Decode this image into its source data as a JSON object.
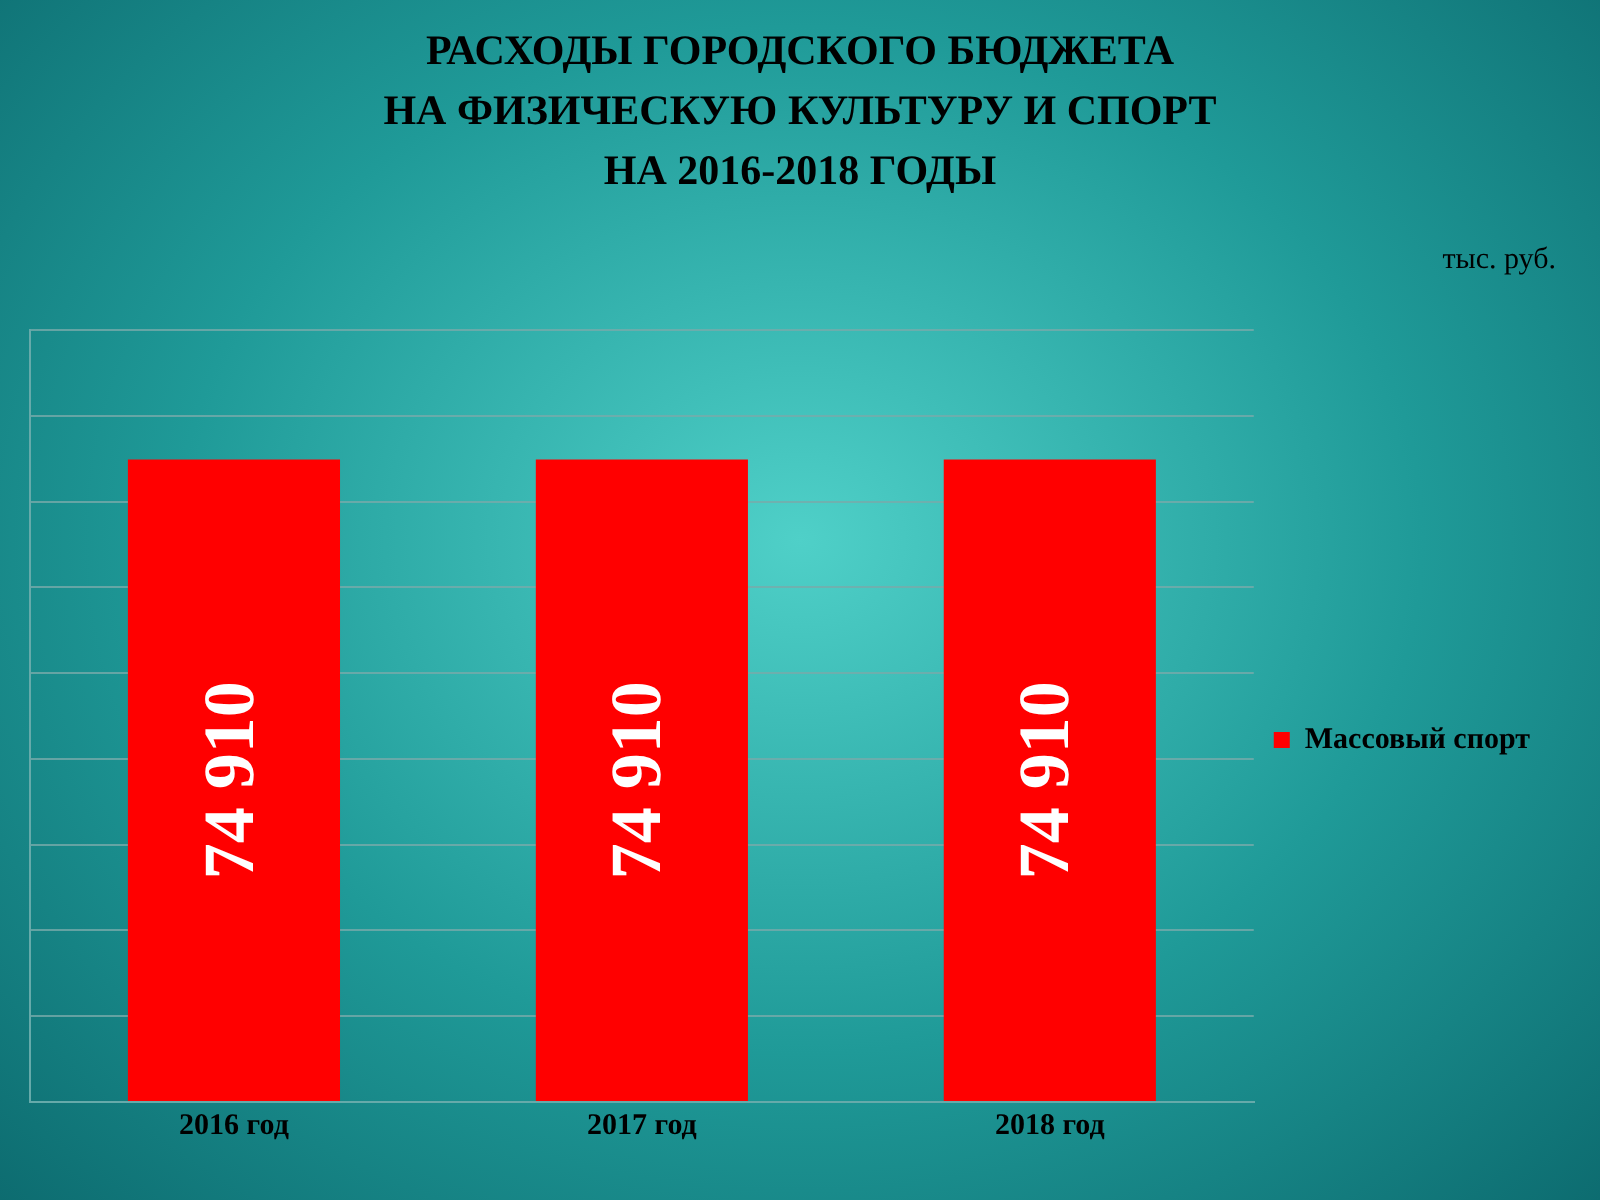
{
  "chart_data": {
    "type": "bar",
    "title": "РАСХОДЫ ГОРОДСКОГО БЮДЖЕТА\nНА ФИЗИЧЕСКУЮ КУЛЬТУРУ И СПОРТ\nНА 2016-2018 ГОДЫ",
    "annotations": [
      "тыс. руб."
    ],
    "categories": [
      "2016 год",
      "2017 год",
      "2018 год"
    ],
    "series": [
      {
        "name": "Массовый спорт",
        "color": "#ff0000",
        "values": [
          74910,
          74910,
          74910
        ],
        "value_labels": [
          "74 910",
          "74 910",
          "74 910"
        ]
      }
    ],
    "ylim": [
      0,
      90000
    ],
    "yticks": [
      {
        "value": 0,
        "label": null
      },
      {
        "value": 10000,
        "label": null
      },
      {
        "value": 20000,
        "label": null
      },
      {
        "value": 30000,
        "label": null
      },
      {
        "value": 40000,
        "label": null
      },
      {
        "value": 50000,
        "label": null
      },
      {
        "value": 60000,
        "label": null
      },
      {
        "value": 70000,
        "label": null
      },
      {
        "value": 80000,
        "label": null
      },
      {
        "value": 90000,
        "label": null
      }
    ],
    "tick_labels": "x",
    "grid": "y",
    "legend": "right"
  }
}
